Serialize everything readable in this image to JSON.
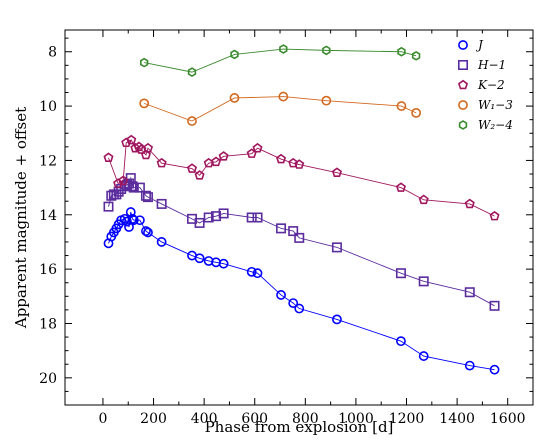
{
  "chart_data": {
    "type": "line",
    "xlabel": "Phase from explosion [d]",
    "ylabel": "Apparent magnitude + offset",
    "xlim": [
      -150,
      1700
    ],
    "ylim": [
      21,
      7.2
    ],
    "y_inverted": true,
    "xticks": [
      0,
      200,
      400,
      600,
      800,
      1000,
      1200,
      1400,
      1600
    ],
    "yticks": [
      8,
      10,
      12,
      14,
      16,
      18,
      20
    ],
    "grid": false,
    "legend_position": "top-right",
    "series": [
      {
        "name": "J",
        "color": "#0000ff",
        "marker": "circle",
        "x": [
          22,
          33,
          43,
          53,
          62,
          72,
          86,
          95,
          103,
          110,
          117,
          122,
          146,
          170,
          178,
          232,
          352,
          382,
          418,
          447,
          477,
          588,
          611,
          704,
          752,
          776,
          925,
          1178,
          1268,
          1450,
          1548
        ],
        "y": [
          15.05,
          14.8,
          14.65,
          14.5,
          14.35,
          14.2,
          14.15,
          14.25,
          14.45,
          13.9,
          14.15,
          14.2,
          14.2,
          14.6,
          14.65,
          15.0,
          15.5,
          15.6,
          15.7,
          15.75,
          15.8,
          16.1,
          16.15,
          16.95,
          17.25,
          17.45,
          17.85,
          18.65,
          19.2,
          19.55,
          19.7
        ]
      },
      {
        "name": "H−1",
        "color": "#5b2c9e",
        "marker": "square",
        "x": [
          22,
          33,
          43,
          53,
          62,
          72,
          86,
          95,
          103,
          110,
          117,
          122,
          146,
          170,
          178,
          232,
          352,
          382,
          418,
          447,
          477,
          588,
          611,
          704,
          752,
          776,
          925,
          1178,
          1268,
          1450,
          1548
        ],
        "y": [
          13.7,
          13.3,
          13.25,
          13.25,
          13.15,
          13.05,
          12.95,
          12.9,
          12.85,
          12.65,
          12.95,
          13.0,
          13.0,
          13.3,
          13.35,
          13.6,
          14.15,
          14.3,
          14.1,
          14.05,
          13.95,
          14.1,
          14.1,
          14.5,
          14.6,
          14.85,
          15.2,
          16.15,
          16.45,
          16.85,
          17.35
        ]
      },
      {
        "name": "K−2",
        "color": "#a0165e",
        "marker": "pentagon",
        "x": [
          22,
          60,
          80,
          92,
          112,
          128,
          142,
          152,
          170,
          178,
          232,
          352,
          382,
          418,
          447,
          477,
          588,
          611,
          704,
          752,
          776,
          925,
          1178,
          1268,
          1450,
          1548
        ],
        "y": [
          11.9,
          12.85,
          12.75,
          11.35,
          11.25,
          11.55,
          11.5,
          11.6,
          11.8,
          11.55,
          12.1,
          12.3,
          12.55,
          12.1,
          12.05,
          11.85,
          11.75,
          11.55,
          11.95,
          12.1,
          12.15,
          12.45,
          13.0,
          13.45,
          13.6,
          14.05
        ]
      },
      {
        "name": "W₁−3",
        "color": "#d2691e",
        "marker": "circle",
        "x": [
          163,
          352,
          520,
          713,
          883,
          1180,
          1238
        ],
        "y": [
          9.9,
          10.55,
          9.7,
          9.65,
          9.8,
          10.0,
          10.25
        ]
      },
      {
        "name": "W₂−4",
        "color": "#3a8a2e",
        "marker": "hexagon",
        "x": [
          163,
          352,
          520,
          713,
          883,
          1180,
          1238
        ],
        "y": [
          8.4,
          8.75,
          8.1,
          7.9,
          7.95,
          8.0,
          8.15
        ]
      }
    ]
  }
}
